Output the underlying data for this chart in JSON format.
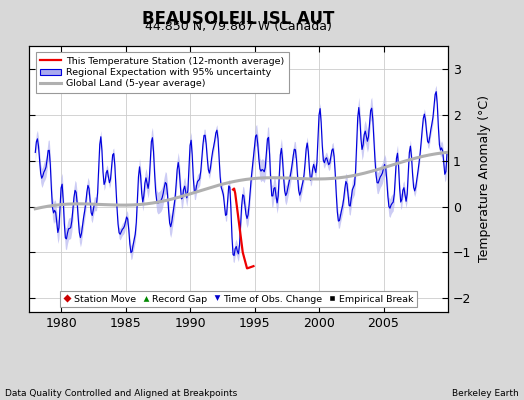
{
  "title": "BEAUSOLEIL ISL AUT",
  "subtitle": "44.850 N, 79.867 W (Canada)",
  "ylabel": "Temperature Anomaly (°C)",
  "footer_left": "Data Quality Controlled and Aligned at Breakpoints",
  "footer_right": "Berkeley Earth",
  "xlim": [
    1977.5,
    2010.0
  ],
  "ylim": [
    -2.3,
    3.5
  ],
  "yticks": [
    -2,
    -1,
    0,
    1,
    2,
    3
  ],
  "xticks": [
    1980,
    1985,
    1990,
    1995,
    2000,
    2005
  ],
  "bg_color": "#d8d8d8",
  "plot_bg_color": "#ffffff",
  "grid_color": "#cccccc",
  "title_fontsize": 12,
  "subtitle_fontsize": 9,
  "axis_fontsize": 8,
  "blue_line_color": "#0000dd",
  "blue_band_color": "#aaaaee",
  "red_line_color": "#ee0000",
  "gray_line_color": "#b0b0b0",
  "station_start": 1993.25,
  "station_end": 1994.92,
  "bottom_legend": [
    {
      "label": "Station Move",
      "color": "#cc0000",
      "marker": "D"
    },
    {
      "label": "Record Gap",
      "color": "#008800",
      "marker": "^"
    },
    {
      "label": "Time of Obs. Change",
      "color": "#0000cc",
      "marker": "v"
    },
    {
      "label": "Empirical Break",
      "color": "#000000",
      "marker": "s"
    }
  ]
}
